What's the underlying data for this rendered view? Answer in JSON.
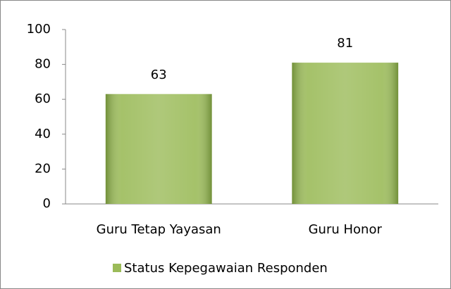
{
  "chart_data": {
    "type": "bar",
    "categories": [
      "Guru Tetap Yayasan",
      "Guru Honor"
    ],
    "series": [
      {
        "name": "Status Kepegawaian Responden",
        "color": "#9bbb59",
        "values": [
          63,
          81
        ]
      }
    ],
    "ylim": [
      0,
      100
    ],
    "yticks": [
      0,
      20,
      40,
      60,
      80,
      100
    ],
    "legend": "bottom"
  }
}
